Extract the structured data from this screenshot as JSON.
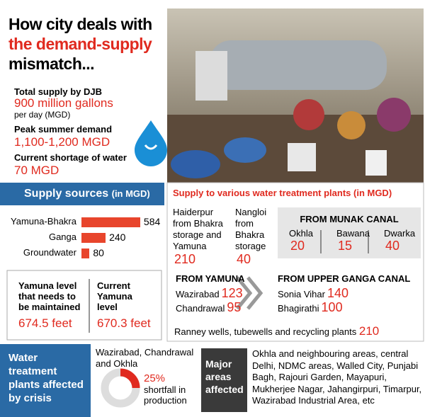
{
  "header": {
    "title_lines": [
      "How city deals with",
      "the demand-supply",
      "mismatch..."
    ]
  },
  "stats": [
    {
      "label": "Total supply by DJB",
      "value": "900 million gallons",
      "note": "per day (MGD)"
    },
    {
      "label": "Peak summer demand",
      "value": "1,100-1,200 MGD"
    },
    {
      "label": "Current shortage of water",
      "value": "70 MGD"
    }
  ],
  "chart_data": {
    "type": "bar",
    "title": "Supply sources",
    "unit": "(in MGD)",
    "categories": [
      "Yamuna-Bhakra",
      "Ganga",
      "Groundwater"
    ],
    "values": [
      584,
      240,
      80
    ],
    "color": "#e8452c"
  },
  "yamuna_level": [
    {
      "label": "Yamuna level that needs to be maintained",
      "value": "674.5 feet"
    },
    {
      "label": "Current Yamuna level",
      "value": "670.3 feet"
    }
  ],
  "treatment": {
    "title": "Supply to various water treatment plants (in MGD)",
    "direct": [
      {
        "label": "Haiderpur from Bhakra storage and Yamuna",
        "value": 210
      },
      {
        "label": "Nangloi from Bhakra storage",
        "value": 40
      }
    ],
    "groups": [
      {
        "title": "FROM MUNAK CANAL",
        "plants": [
          {
            "name": "Okhla",
            "value": 20
          },
          {
            "name": "Bawana",
            "value": 15
          },
          {
            "name": "Dwarka",
            "value": 40
          }
        ]
      },
      {
        "title": "FROM YAMUNA",
        "plants": [
          {
            "name": "Wazirabad",
            "value": 123
          },
          {
            "name": "Chandrawal",
            "value": 95
          }
        ]
      },
      {
        "title": "FROM UPPER GANGA CANAL",
        "plants": [
          {
            "name": "Sonia Vihar",
            "value": 140
          },
          {
            "name": "Bhagirathi",
            "value": 100
          }
        ]
      }
    ],
    "ranney": {
      "label": "Ranney wells, tubewells and recycling plants",
      "value": 210
    }
  },
  "affected": {
    "title": "Water treatment plants affected by crisis",
    "plants": "Wazirabad, Chandrawal and Okhla",
    "shortfall": {
      "value": 25,
      "label": "25%"
    },
    "shortfall_text": "shortfall in production"
  },
  "areas": {
    "title": "Major areas affected",
    "text": "Okhla and neighbouring areas, central Delhi, NDMC areas, Walled City, Punjabi Bagh, Rajouri Garden, Mayapuri, Mukherjee Nagar, Jahangirpuri, Timarpur, Wazirabad Industrial Area, etc"
  }
}
